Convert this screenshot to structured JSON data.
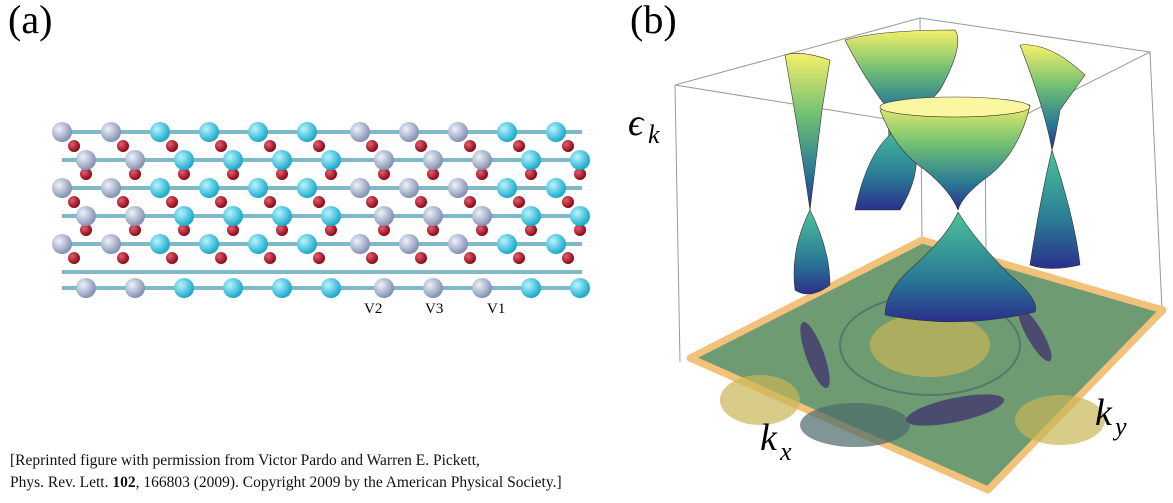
{
  "panel_a": {
    "label": "(a)",
    "site_labels": [
      "V2",
      "V3",
      "V1"
    ]
  },
  "panel_b": {
    "label": "(b)",
    "energy_symbol": "ϵ",
    "energy_sub": "k",
    "kx_symbol": "k",
    "kx_sub": "x",
    "ky_symbol": "k",
    "ky_sub": "y"
  },
  "caption": {
    "line1": "[Reprinted figure with permission from Victor Pardo and Warren E. Pickett,",
    "journal": "Phys. Rev. Lett.",
    "volume": "102",
    "rest": ", 166803 (2009). Copyright 2009 by the American Physical Society.]"
  }
}
